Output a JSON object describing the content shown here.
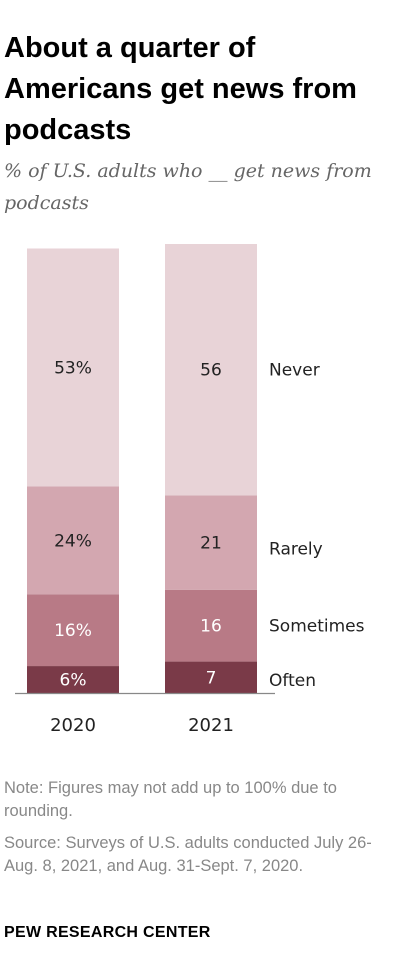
{
  "title": "About a quarter of Americans get news from podcasts",
  "subtitle": "% of U.S. adults who __ get news from podcasts",
  "note": "Note: Figures may not add up to 100% due to rounding.",
  "source": "Source: Surveys of U.S. adults conducted July 26-Aug. 8, 2021, and Aug. 31-Sept. 7, 2020.",
  "brand": "PEW RESEARCH CENTER",
  "chart_data": {
    "type": "bar",
    "stacked": true,
    "orientation": "vertical",
    "categories": [
      "2020",
      "2021"
    ],
    "series": [
      {
        "name": "Often",
        "values": [
          6,
          7
        ],
        "labels": [
          "6%",
          "7"
        ],
        "color": "#7a3a48"
      },
      {
        "name": "Sometimes",
        "values": [
          16,
          16
        ],
        "labels": [
          "16%",
          "16"
        ],
        "color": "#b87a86"
      },
      {
        "name": "Rarely",
        "values": [
          24,
          21
        ],
        "labels": [
          "24%",
          "21"
        ],
        "color": "#d3a7b0"
      },
      {
        "name": "Never",
        "values": [
          53,
          56
        ],
        "labels": [
          "53%",
          "56"
        ],
        "color": "#e8d3d7"
      }
    ],
    "legend": "right",
    "ylim": [
      0,
      100
    ],
    "grid": false
  }
}
